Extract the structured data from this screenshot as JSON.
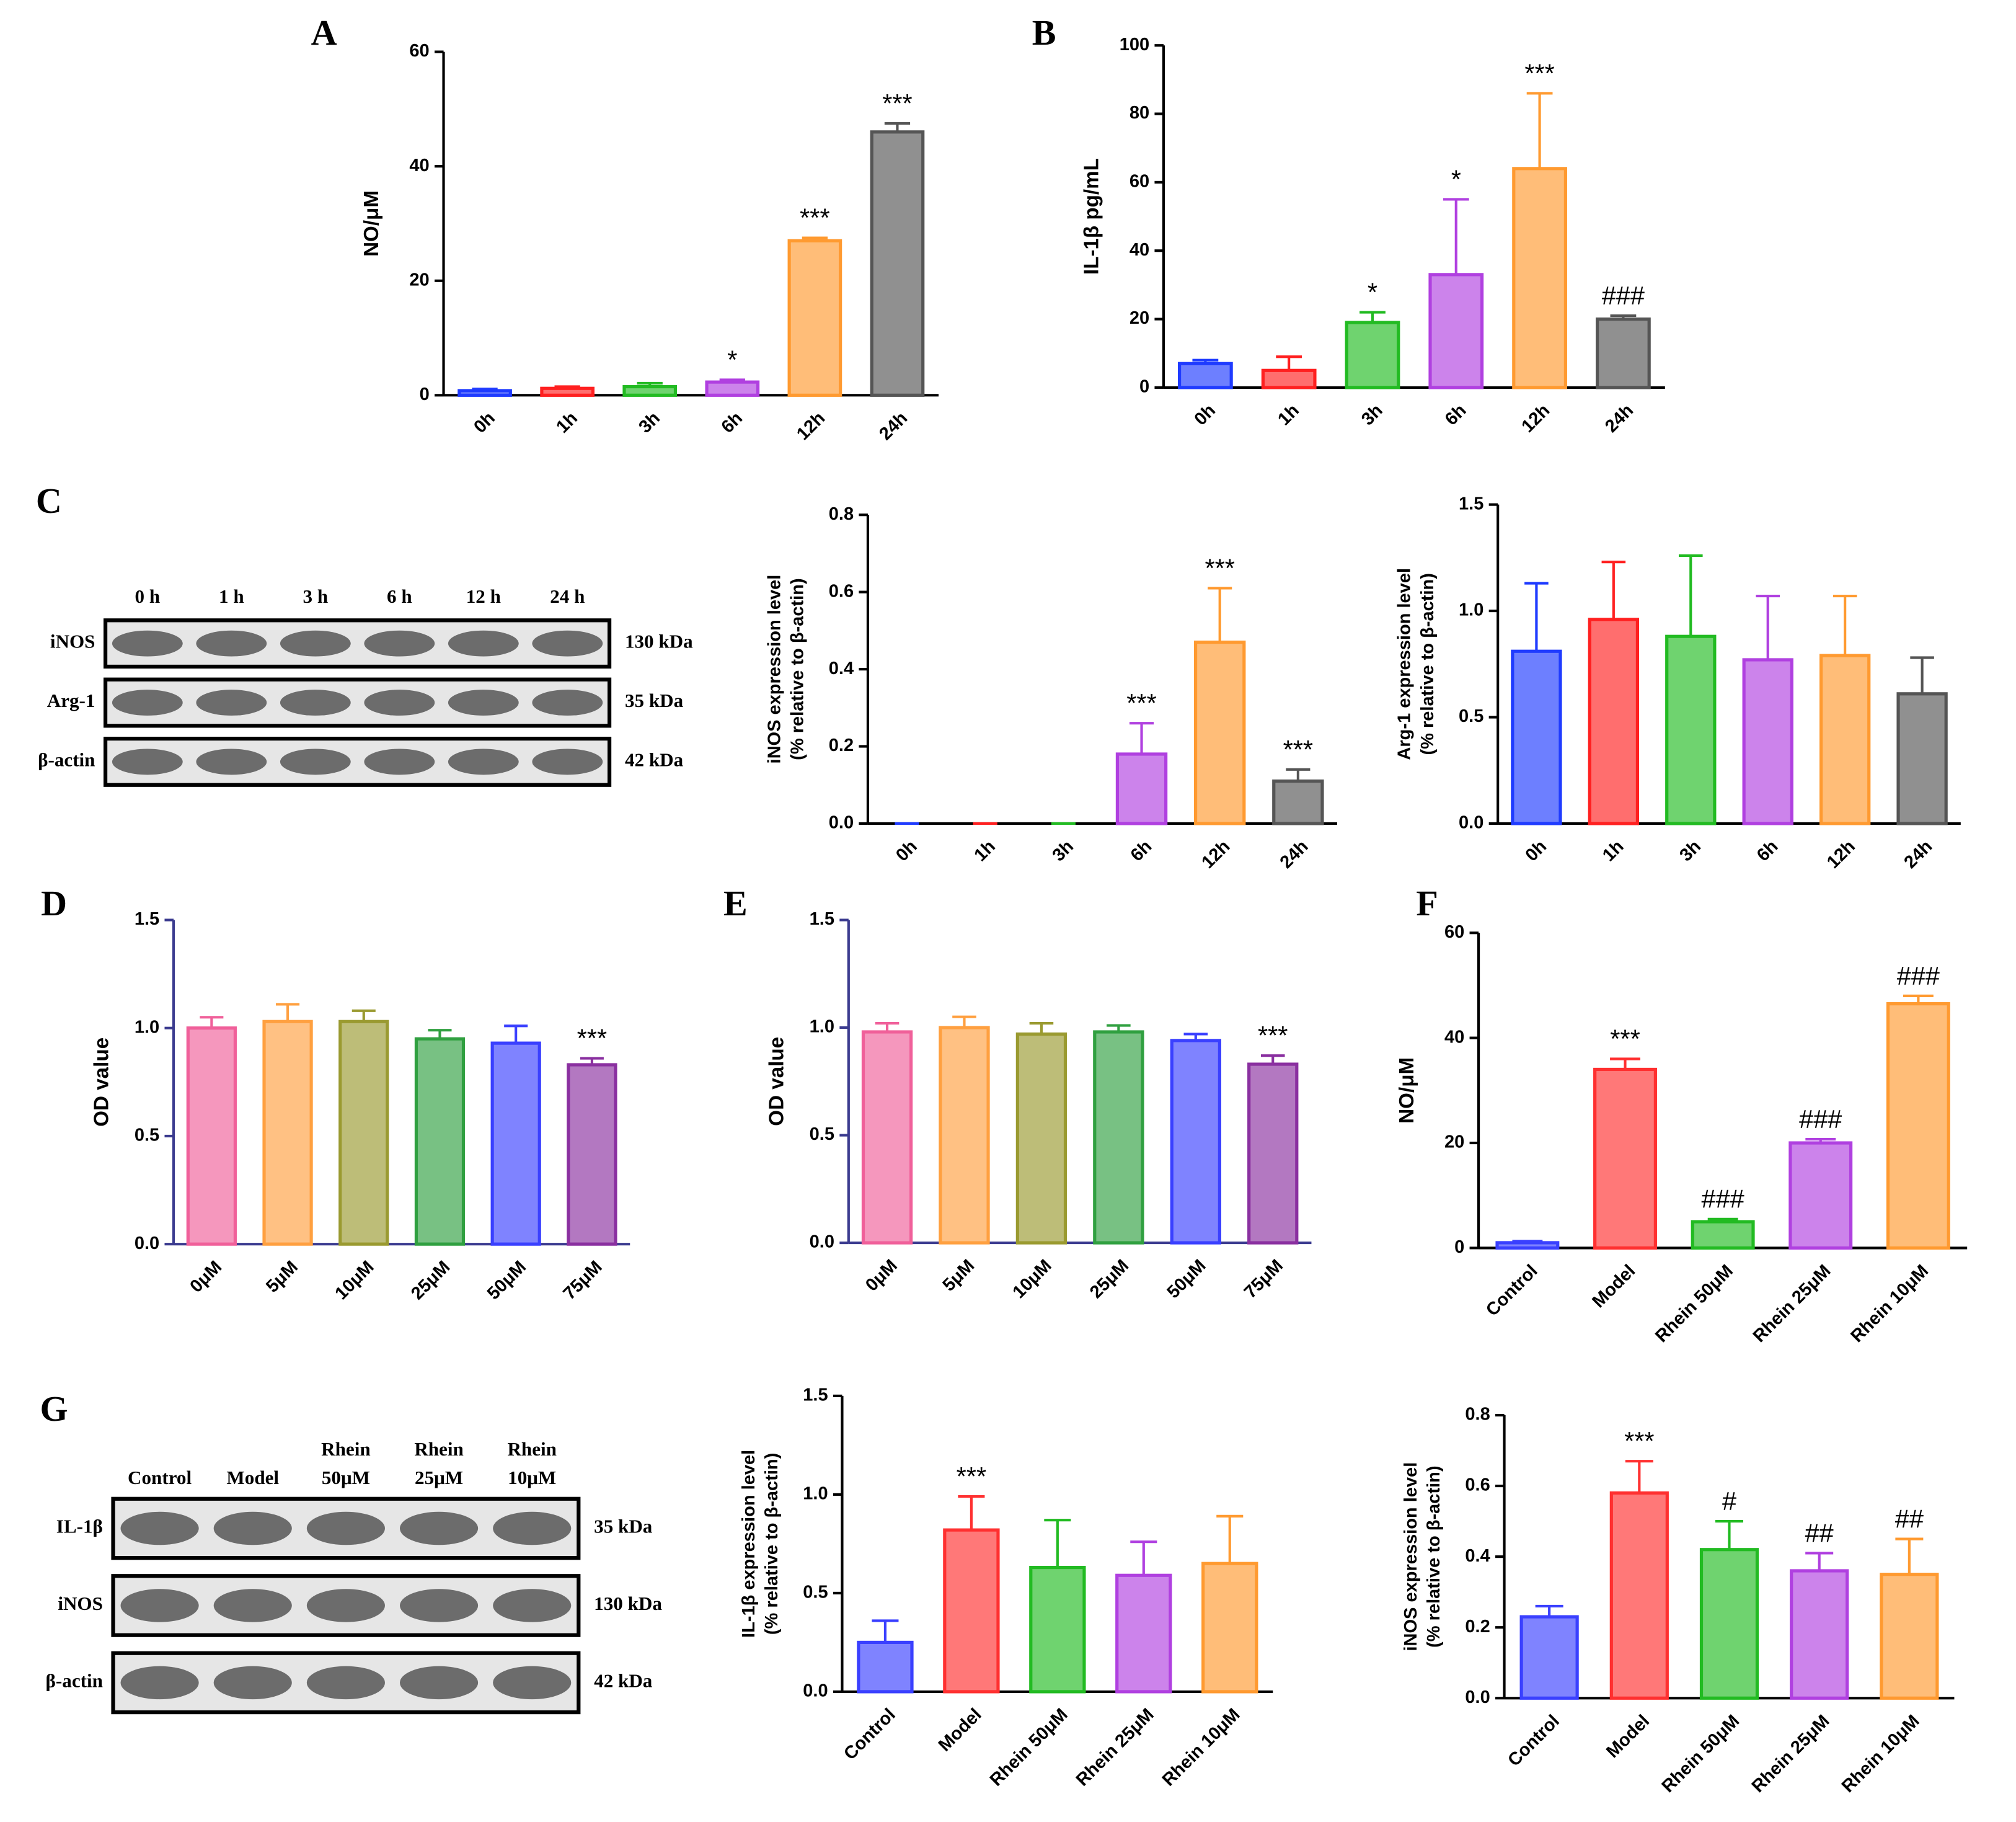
{
  "chart_data": [
    {
      "type": "bar",
      "panel": "A",
      "ylabel": [
        "NO/μM"
      ],
      "categories": [
        "0h",
        "1h",
        "3h",
        "6h",
        "12h",
        "24h"
      ],
      "values": [
        0.8,
        1.2,
        1.5,
        2.3,
        27,
        46
      ],
      "errors": [
        0.3,
        0.3,
        0.6,
        0.4,
        0.5,
        1.5
      ],
      "colors": [
        "#1f3bff",
        "#ff2020",
        "#22bb22",
        "#b040e0",
        "#ff9a30",
        "#555555"
      ],
      "ylim": [
        0,
        60
      ],
      "yticks": [
        0,
        20,
        40,
        60
      ],
      "annotations": [
        null,
        null,
        null,
        "*",
        "***",
        "***"
      ]
    },
    {
      "type": "bar",
      "panel": "B",
      "ylabel": [
        "IL-1β pg/mL"
      ],
      "categories": [
        "0h",
        "1h",
        "3h",
        "6h",
        "12h",
        "24h"
      ],
      "values": [
        7,
        5,
        19,
        33,
        64,
        20
      ],
      "errors": [
        1,
        4,
        3,
        22,
        22,
        1
      ],
      "colors": [
        "#1f3bff",
        "#ff2020",
        "#22bb22",
        "#b040e0",
        "#ff9a30",
        "#555555"
      ],
      "ylim": [
        0,
        100
      ],
      "yticks": [
        0,
        20,
        40,
        60,
        80,
        100
      ],
      "annotations": [
        null,
        null,
        "*",
        "*",
        "***",
        "###"
      ]
    },
    {
      "type": "bar",
      "ylabel": [
        "iNOS expression level",
        "(% relative to β-actin)"
      ],
      "categories": [
        "0h",
        "1h",
        "3h",
        "6h",
        "12h",
        "24h"
      ],
      "values": [
        0,
        0,
        0,
        0.18,
        0.47,
        0.11
      ],
      "errors": [
        0,
        0,
        0,
        0.08,
        0.14,
        0.03
      ],
      "colors": [
        "#1f3bff",
        "#ff2020",
        "#22bb22",
        "#b040e0",
        "#ff9a30",
        "#555555"
      ],
      "ylim": [
        0,
        0.8
      ],
      "yticks": [
        {
          "value": 0,
          "label": "0.0"
        },
        {
          "value": 0.2,
          "label": "0.2"
        },
        {
          "value": 0.4,
          "label": "0.4"
        },
        {
          "value": 0.6,
          "label": "0.6"
        },
        {
          "value": 0.8,
          "label": "0.8"
        }
      ],
      "annotations": [
        null,
        null,
        null,
        "***",
        "***",
        "***"
      ]
    },
    {
      "type": "bar",
      "ylabel": [
        "Arg-1 expression level",
        "(% relative to β-actin)"
      ],
      "categories": [
        "0h",
        "1h",
        "3h",
        "6h",
        "12h",
        "24h"
      ],
      "values": [
        0.81,
        0.96,
        0.88,
        0.77,
        0.79,
        0.61
      ],
      "errors": [
        0.32,
        0.27,
        0.38,
        0.3,
        0.28,
        0.17
      ],
      "colors": [
        "#1f3bff",
        "#ff2020",
        "#22bb22",
        "#b040e0",
        "#ff9a30",
        "#555555"
      ],
      "ylim": [
        0,
        1.5
      ],
      "yticks": [
        {
          "value": 0,
          "label": "0.0"
        },
        {
          "value": 0.5,
          "label": "0.5"
        },
        {
          "value": 1,
          "label": "1.0"
        },
        {
          "value": 1.5,
          "label": "1.5"
        }
      ]
    },
    {
      "type": "bar",
      "panel": "D",
      "ylabel": [
        "OD value"
      ],
      "categories": [
        "0μM",
        "5μM",
        "10μM",
        "25μM",
        "50μM",
        "75μM"
      ],
      "values": [
        1.0,
        1.03,
        1.03,
        0.95,
        0.93,
        0.83
      ],
      "errors": [
        0.05,
        0.08,
        0.05,
        0.04,
        0.08,
        0.03
      ],
      "colors": [
        "#f0609a",
        "#ffa040",
        "#9a9a30",
        "#30a040",
        "#3a40ff",
        "#8a30a0"
      ],
      "axis_color": "#3b3b8f",
      "ylim": [
        0,
        1.5
      ],
      "yticks": [
        {
          "value": 0,
          "label": "0.0"
        },
        {
          "value": 0.5,
          "label": "0.5"
        },
        {
          "value": 1,
          "label": "1.0"
        },
        {
          "value": 1.5,
          "label": "1.5"
        }
      ],
      "annotations": [
        null,
        null,
        null,
        null,
        null,
        "***"
      ]
    },
    {
      "type": "bar",
      "panel": "E",
      "ylabel": [
        "OD value"
      ],
      "categories": [
        "0μM",
        "5μM",
        "10μM",
        "25μM",
        "50μM",
        "75μM"
      ],
      "values": [
        0.98,
        1.0,
        0.97,
        0.98,
        0.94,
        0.83
      ],
      "errors": [
        0.04,
        0.05,
        0.05,
        0.03,
        0.03,
        0.04
      ],
      "colors": [
        "#f0609a",
        "#ffa040",
        "#9a9a30",
        "#30a040",
        "#3a40ff",
        "#8a30a0"
      ],
      "axis_color": "#3b3b8f",
      "ylim": [
        0,
        1.5
      ],
      "yticks": [
        {
          "value": 0,
          "label": "0.0"
        },
        {
          "value": 0.5,
          "label": "0.5"
        },
        {
          "value": 1,
          "label": "1.0"
        },
        {
          "value": 1.5,
          "label": "1.5"
        }
      ],
      "annotations": [
        null,
        null,
        null,
        null,
        null,
        "***"
      ]
    },
    {
      "type": "bar",
      "panel": "F",
      "ylabel": [
        "NO/μM"
      ],
      "categories": [
        "Control",
        "Model",
        "Rhein 50μM",
        "Rhein 25μM",
        "Rhein 10μM"
      ],
      "values": [
        1,
        34,
        5,
        20,
        46.5
      ],
      "errors": [
        0.3,
        2,
        0.5,
        0.7,
        1.5
      ],
      "colors": [
        "#3a40ff",
        "#ff3030",
        "#22bb22",
        "#b040e0",
        "#ff9a30"
      ],
      "ylim": [
        0,
        60
      ],
      "yticks": [
        0,
        20,
        40,
        60
      ],
      "annotations": [
        null,
        "***",
        "###",
        "###",
        "###"
      ]
    },
    {
      "type": "bar",
      "ylabel": [
        "IL-1β expression level",
        "(% relative to β-actin)"
      ],
      "categories": [
        "Control",
        "Model",
        "Rhein 50μM",
        "Rhein 25μM",
        "Rhein 10μM"
      ],
      "values": [
        0.25,
        0.82,
        0.63,
        0.59,
        0.65
      ],
      "errors": [
        0.11,
        0.17,
        0.24,
        0.17,
        0.24
      ],
      "colors": [
        "#3a40ff",
        "#ff3030",
        "#22bb22",
        "#b040e0",
        "#ff9a30"
      ],
      "ylim": [
        0,
        1.5
      ],
      "yticks": [
        {
          "value": 0,
          "label": "0.0"
        },
        {
          "value": 0.5,
          "label": "0.5"
        },
        {
          "value": 1,
          "label": "1.0"
        },
        {
          "value": 1.5,
          "label": "1.5"
        }
      ],
      "annotations": [
        null,
        "***",
        null,
        null,
        null
      ]
    },
    {
      "type": "bar",
      "ylabel": [
        "iNOS expression level",
        "(% relative to β-actin)"
      ],
      "categories": [
        "Control",
        "Model",
        "Rhein 50μM",
        "Rhein 25μM",
        "Rhein 10μM"
      ],
      "values": [
        0.23,
        0.58,
        0.42,
        0.36,
        0.35
      ],
      "errors": [
        0.03,
        0.09,
        0.08,
        0.05,
        0.1
      ],
      "colors": [
        "#3a40ff",
        "#ff3030",
        "#22bb22",
        "#b040e0",
        "#ff9a30"
      ],
      "ylim": [
        0,
        0.8
      ],
      "yticks": [
        {
          "value": 0,
          "label": "0.0"
        },
        {
          "value": 0.2,
          "label": "0.2"
        },
        {
          "value": 0.4,
          "label": "0.4"
        },
        {
          "value": 0.6,
          "label": "0.6"
        },
        {
          "value": 0.8,
          "label": "0.8"
        }
      ],
      "annotations": [
        null,
        "***",
        "#",
        "##",
        "##"
      ]
    }
  ],
  "blots": [
    {
      "panel": "C",
      "lanes": [
        [
          "0 h"
        ],
        [
          "1 h"
        ],
        [
          "3 h"
        ],
        [
          "6 h"
        ],
        [
          "12 h"
        ],
        [
          "24 h"
        ]
      ],
      "rows": [
        {
          "protein": "iNOS",
          "size": "130 kDa"
        },
        {
          "protein": "Arg-1",
          "size": "35 kDa"
        },
        {
          "protein": "β-actin",
          "size": "42 kDa"
        }
      ]
    },
    {
      "panel": "G",
      "lanes": [
        [
          "Control"
        ],
        [
          "Model"
        ],
        [
          "Rhein",
          "50μM"
        ],
        [
          "Rhein",
          "25μM"
        ],
        [
          "Rhein",
          "10μM"
        ]
      ],
      "rows": [
        {
          "protein": "IL-1β",
          "size": "35 kDa"
        },
        {
          "protein": "iNOS",
          "size": "130 kDa"
        },
        {
          "protein": "β-actin",
          "size": "42 kDa"
        }
      ]
    }
  ]
}
